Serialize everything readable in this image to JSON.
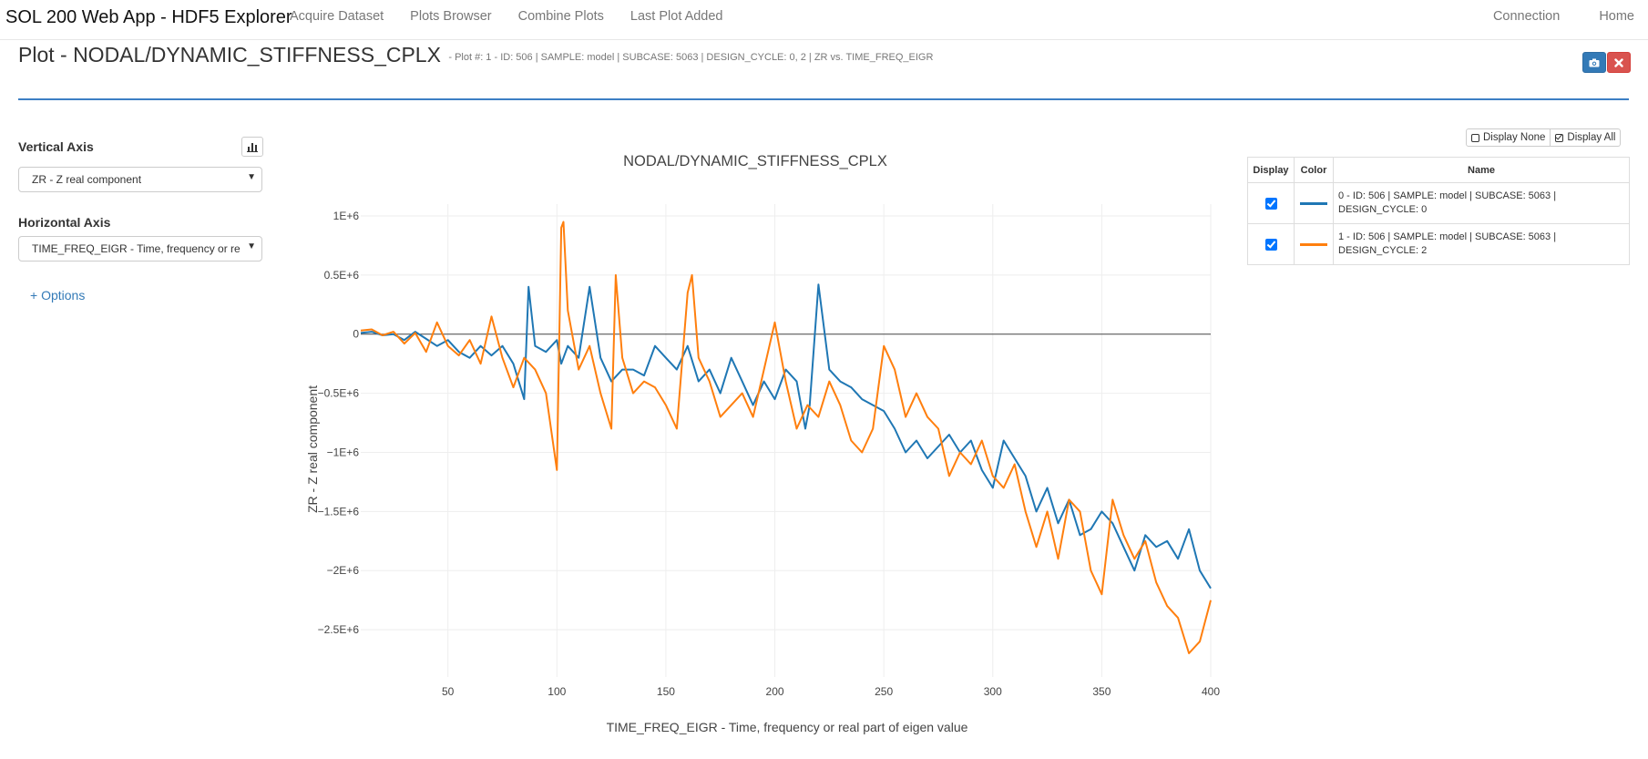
{
  "navbar": {
    "brand": "SOL 200 Web App - HDF5 Explorer",
    "links": [
      "Acquire Dataset",
      "Plots Browser",
      "Combine Plots",
      "Last Plot Added"
    ],
    "right_links": [
      "Connection",
      "Home"
    ]
  },
  "header": {
    "title": "Plot - NODAL/DYNAMIC_STIFFNESS_CPLX",
    "subtitle": "- Plot #: 1 - ID: 506 | SAMPLE: model | SUBCASE: 5063 | DESIGN_CYCLE: 0, 2 | ZR vs. TIME_FREQ_EIGR",
    "camera_icon": "camera-icon",
    "close_icon": "close-icon"
  },
  "controls": {
    "vertical_axis_label": "Vertical Axis",
    "vertical_axis_value": "ZR - Z real component",
    "horizontal_axis_label": "Horizontal Axis",
    "horizontal_axis_value": "TIME_FREQ_EIGR - Time, frequency or re",
    "options_link": "+ Options"
  },
  "legend_panel": {
    "display_none": "Display None",
    "display_all": "Display All",
    "headers": [
      "Display",
      "Color",
      "Name"
    ],
    "rows": [
      {
        "line1": "0 - ID: 506 | SAMPLE: model | SUBCASE: 5063 |",
        "line2": "DESIGN_CYCLE: 0",
        "color": "#1f77b4",
        "checked": true
      },
      {
        "line1": "1 - ID: 506 | SAMPLE: model | SUBCASE: 5063 |",
        "line2": "DESIGN_CYCLE: 2",
        "color": "#ff7f0e",
        "checked": true
      }
    ]
  },
  "chart_data": {
    "type": "line",
    "title": "NODAL/DYNAMIC_STIFFNESS_CPLX",
    "xlabel": "TIME_FREQ_EIGR - Time, frequency or real part of eigen value",
    "ylabel": "ZR - Z real component",
    "xlim": [
      10,
      400
    ],
    "ylim": [
      -2900000.0,
      1100000.0
    ],
    "x_ticks": [
      50,
      100,
      150,
      200,
      250,
      300,
      350,
      400
    ],
    "y_ticks": [
      {
        "v": 1000000.0,
        "label": "1E+6"
      },
      {
        "v": 500000.0,
        "label": "0.5E+6"
      },
      {
        "v": 0,
        "label": "0"
      },
      {
        "v": -500000.0,
        "label": "−0.5E+6"
      },
      {
        "v": -1000000.0,
        "label": "−1E+6"
      },
      {
        "v": -1500000.0,
        "label": "−1.5E+6"
      },
      {
        "v": -2000000.0,
        "label": "−2E+6"
      },
      {
        "v": -2500000.0,
        "label": "−2.5E+6"
      }
    ],
    "grid": true,
    "series": [
      {
        "color": "#1f77b4",
        "x": [
          10,
          15,
          20,
          25,
          30,
          35,
          40,
          45,
          50,
          55,
          60,
          65,
          70,
          75,
          80,
          85,
          87,
          90,
          95,
          100,
          102,
          105,
          110,
          115,
          120,
          125,
          130,
          135,
          140,
          145,
          150,
          155,
          160,
          165,
          170,
          175,
          180,
          185,
          190,
          195,
          200,
          205,
          210,
          214,
          216,
          220,
          225,
          230,
          235,
          240,
          245,
          250,
          255,
          260,
          265,
          270,
          275,
          280,
          285,
          290,
          295,
          300,
          305,
          310,
          315,
          320,
          325,
          330,
          335,
          340,
          345,
          350,
          355,
          360,
          365,
          370,
          375,
          380,
          385,
          390,
          395,
          400
        ],
        "y": [
          10000,
          20000,
          -10000,
          0,
          -50000,
          20000,
          -40000,
          -100000,
          -50000,
          -150000,
          -200000,
          -100000,
          -180000,
          -100000,
          -250000,
          -550000,
          400000,
          -100000,
          -150000,
          -50000,
          -250000,
          -100000,
          -200000,
          400000,
          -200000,
          -400000,
          -300000,
          -300000,
          -350000,
          -100000,
          -200000,
          -300000,
          -100000,
          -400000,
          -300000,
          -500000,
          -200000,
          -400000,
          -600000,
          -400000,
          -550000,
          -300000,
          -400000,
          -800000,
          -600000,
          420000,
          -300000,
          -400000,
          -450000,
          -550000,
          -600000,
          -650000,
          -800000,
          -1000000,
          -900000,
          -1050000,
          -950000,
          -850000,
          -1000000,
          -900000,
          -1150000,
          -1300000,
          -900000,
          -1050000,
          -1200000,
          -1500000,
          -1300000,
          -1600000,
          -1400000,
          -1700000,
          -1650000,
          -1500000,
          -1600000,
          -1800000,
          -2000000,
          -1700000,
          -1800000,
          -1750000,
          -1900000,
          -1650000,
          -2000000,
          -2150000
        ]
      },
      {
        "color": "#ff7f0e",
        "x": [
          10,
          15,
          20,
          25,
          30,
          35,
          40,
          45,
          50,
          55,
          60,
          65,
          70,
          75,
          80,
          85,
          90,
          95,
          100,
          102,
          103,
          105,
          110,
          115,
          120,
          125,
          127,
          130,
          135,
          140,
          145,
          150,
          155,
          160,
          162,
          165,
          170,
          175,
          180,
          185,
          190,
          195,
          200,
          205,
          210,
          215,
          220,
          225,
          230,
          235,
          240,
          245,
          250,
          255,
          260,
          265,
          270,
          275,
          280,
          285,
          290,
          295,
          300,
          305,
          310,
          315,
          320,
          325,
          330,
          335,
          340,
          345,
          350,
          355,
          360,
          365,
          370,
          375,
          380,
          385,
          390,
          395,
          400
        ],
        "y": [
          30000,
          40000,
          -10000,
          20000,
          -80000,
          10000,
          -150000,
          100000,
          -100000,
          -180000,
          -50000,
          -250000,
          150000,
          -200000,
          -450000,
          -200000,
          -300000,
          -500000,
          -1150000,
          900000,
          950000,
          200000,
          -300000,
          -100000,
          -500000,
          -800000,
          500000,
          -200000,
          -500000,
          -400000,
          -450000,
          -600000,
          -800000,
          350000,
          500000,
          -200000,
          -400000,
          -700000,
          -600000,
          -500000,
          -700000,
          -300000,
          100000,
          -400000,
          -800000,
          -600000,
          -700000,
          -400000,
          -600000,
          -900000,
          -1000000,
          -800000,
          -100000,
          -300000,
          -700000,
          -500000,
          -700000,
          -800000,
          -1200000,
          -1000000,
          -1100000,
          -900000,
          -1200000,
          -1300000,
          -1100000,
          -1500000,
          -1800000,
          -1500000,
          -1900000,
          -1400000,
          -1500000,
          -2000000,
          -2200000,
          -1400000,
          -1700000,
          -1900000,
          -1750000,
          -2100000,
          -2300000,
          -2400000,
          -2700000,
          -2600000,
          -2250000
        ]
      }
    ]
  }
}
